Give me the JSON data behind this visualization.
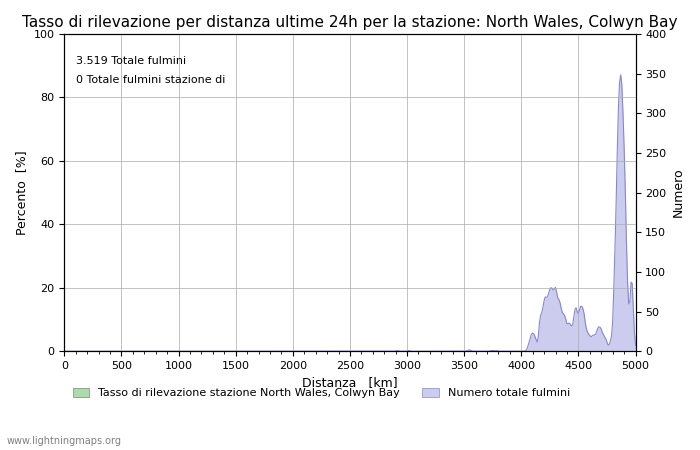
{
  "title": "Tasso di rilevazione per distanza ultime 24h per la stazione: North Wales, Colwyn Bay",
  "annotation_line1": "3.519 Totale fulmini",
  "annotation_line2": "0 Totale fulmini stazione di",
  "xlabel": "Distanza   [km]",
  "ylabel_left": "Percento  [%]",
  "ylabel_right": "Numero",
  "watermark": "www.lightningmaps.org",
  "xlim": [
    0,
    5000
  ],
  "ylim_left": [
    0,
    100
  ],
  "ylim_right": [
    0,
    400
  ],
  "xticks": [
    0,
    500,
    1000,
    1500,
    2000,
    2500,
    3000,
    3500,
    4000,
    4500,
    5000
  ],
  "yticks_left": [
    0,
    20,
    40,
    60,
    80,
    100
  ],
  "yticks_right": [
    0,
    50,
    100,
    150,
    200,
    250,
    300,
    350,
    400
  ],
  "line_color": "#8888cc",
  "fill_color": "#ccccee",
  "green_fill_color": "#aaddaa",
  "background_color": "#ffffff",
  "grid_color": "#aaaaaa",
  "legend_label_left": "Tasso di rilevazione stazione North Wales, Colwyn Bay",
  "legend_label_right": "Numero totale fulmini",
  "title_fontsize": 11,
  "label_fontsize": 9,
  "tick_fontsize": 8,
  "annotation_fontsize": 8
}
